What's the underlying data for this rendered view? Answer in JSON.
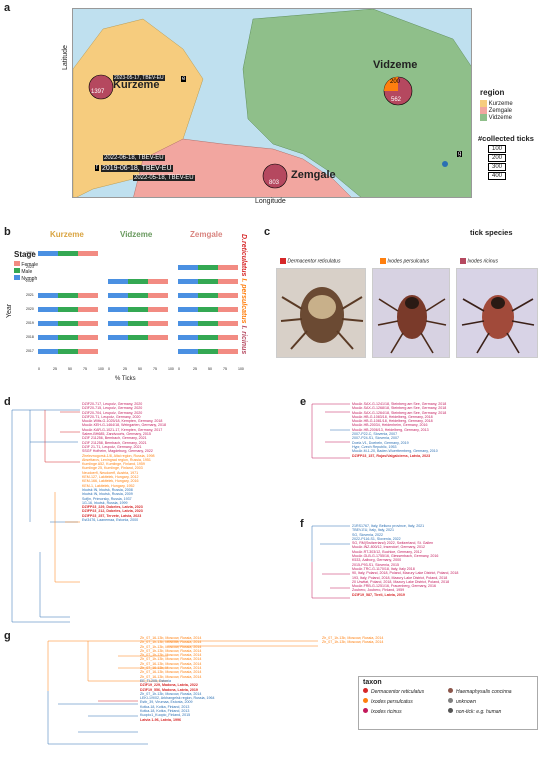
{
  "panels": {
    "a": "a",
    "b": "b",
    "c": "c",
    "d": "d",
    "e": "e",
    "f": "f",
    "g": "g"
  },
  "map": {
    "ylabel": "Latitude",
    "xlabel": "Longitude",
    "regions": {
      "kurzeme": "Kurzeme",
      "zemgale": "Zemgale",
      "vidzeme": "Vidzeme"
    },
    "counts": {
      "kurzeme": "1397",
      "zemgale": "803",
      "vidzeme_top": "200",
      "vidzeme_bottom": "562"
    },
    "legend_title": "region",
    "legend_items": [
      "Kurzeme",
      "Zemgale",
      "Vidzeme"
    ],
    "legend_colors": [
      "#f6cc7e",
      "#f2a6a0",
      "#8fbf8a"
    ],
    "ticks_title": "#collected ticks",
    "ticks_sizes": [
      "100",
      "200",
      "300",
      "400"
    ],
    "tbev_labels": [
      "2023-05-17, TBEV-EU",
      "2022-06-18, TBEV-EU",
      "2019-06-18, TBEV-EU",
      "2022-05-18, TBEV-EU"
    ],
    "letters": [
      "e",
      "f",
      "g"
    ]
  },
  "panel_b": {
    "regions": [
      "Kurzeme",
      "Vidzeme",
      "Zemgale"
    ],
    "stage_title": "Stage",
    "stages": [
      "Female",
      "Male",
      "Nymph"
    ],
    "ylabel": "Year",
    "years": [
      "2024",
      "2023",
      "2022",
      "2021",
      "2020",
      "2019",
      "2018",
      "2017"
    ],
    "xlabel": "% Ticks",
    "xticks": [
      "0",
      "25",
      "50",
      "75",
      "100"
    ],
    "species": [
      "D.reticulatus",
      "I. persulcatus",
      "I. ricinus"
    ]
  },
  "panel_c": {
    "title": "tick species",
    "species": [
      "Dermacentor reticulatus",
      "Ixodes persulcatus",
      "Ixodes ricinus"
    ],
    "colors": [
      "#d62728",
      "#ff7f0e",
      "#b5485f"
    ]
  },
  "tree_d": [
    "DZIF20-717, Leupolz, Germany, 2020",
    "DZIF20-715, Leupolz, Germany, 2020",
    "DZIF20-704, Leupolz, Germany, 2020",
    "DZIF20-T1, Leupolz, Germany, 2020",
    "MucAr-Wilts-G-1025/18, Kempten, Germany, 2018",
    "MucAr-KEH-G-1464/18, Weingarten, Germany, 2018",
    "MucAr-KAR-G-1021-17, Kempten, Germany, 2017",
    "Salem-BH685, Zandvoorts, Germany, 2015",
    "DZIF 211256, Bernbach, Germany, 2021",
    "DZIF 211258, Bernbach, Germany, 2021",
    "DZIF 21-T1, Leupolz, Germany, 2021",
    "SSGF Hofheim, Magdeburg, Germany, 2022",
    "Zheleznogorsk-1/8, Altai region, Russia, 1998",
    "Absettarov, Leningrad region, Russia, 1951",
    "Kumlinge A52, Kumlinge, Finland, 1959",
    "Kumlinge 25, Kumlinge, Finland, 2003",
    "Neudoerfl, Neudoerfl, Austria, 1971",
    "KEM-127, Lakitelek, Hungary, 2012",
    "KEM-166, Lakitelek, Hungary, 2016",
    "KEM-1, Lakitelek, Hungary, 1952",
    "Irkutsk IN, Irkutsk, Russia, 2008",
    "Irkutsk IN, Irkutsk, Russia, 2009",
    "Sofjin, Primorsky, Russia, 1937",
    "1G-16, Irkutsk, Russia, 1999",
    "DZIFP23_229, Dobeles, Latvia, 2023",
    "DZIFP23_212, Dobeles, Latvia, 2023",
    "DZIFP23_257, Tervete, Latvia, 2023",
    "Est3476, Laanemaa, Estonia, 2000"
  ],
  "tree_e": [
    "MucAr-SAX-G-1241/18, Steinberg am See, Germany, 2018",
    "MucAr-SAX-G-1268/18, Steinberg am See, Germany, 2018",
    "MucAr-SAX-G-1264/18, Steinberg am See, Germany, 2018",
    "MucAr-HB-G-1083/18, Heidelberg, Germany, 2018",
    "MucAr-HB-G-1081/18, Heidelberg, Germany, 2018",
    "MucAr-HB-20034, Heidenheim, Germany, 2016",
    "MucAr-HB-2006/13, Heidelberg, Germany, 2013",
    "2007-P22-C, Slovenia, 2007",
    "2007-P24-S1, Slovenia, 2007",
    "Doelz-V1, Doebeln, Germany, 2019",
    "Hypr, Czech Republic, 1953",
    "MucAr-M-1-20, Baden-Wuerttemberg, Germany, 2010",
    "DZIFP23_157, Rojas/Valgalciems, Latvia, 2023"
  ],
  "tree_f": [
    "21RS1767, Italy, Belluno province, Italy, 2021",
    "TBEV-EU, Italy, Italy, 2021",
    "SG, Slovenia, 2022",
    "2022-P116-S1, Slovenia, 2022",
    "SG, RM(Switzerland) 2022, Switzerland, St. Gallen",
    "MucAr-INZ-800/12, Insendorf, Germany, 2012",
    "MucAr-RT-303/12, Buchloe, Germany, 2012",
    "MucAr-GLB-G-1755/16, Giessenbach, Germany, 2016",
    "K533, Aalborg, Germany, 2000",
    "2015-P93-S1, Slovenia, 2015",
    "MucAr-TRC-G-1170/18, Italy, Italy 2018",
    "90, Italy, Poland, 2018, Poland, Mazury Lake District, Poland, 2018",
    "193, Italy, Poland, 2018, Mazury Lake District, Poland, 2018",
    "20 Urwitat, Poland, 2018, Mazury Lake District, Poland, 2018",
    "MucAr-FRB-G-1251/16, Frauenberg, Germany, 2016",
    "Zoubero, Joubero, Finland, 1959",
    "DZIF19_587, Tireli, Latvia, 2019"
  ],
  "tree_g": [
    "Zh_07_16-13b, Moscow, Russia, 2014",
    "Zh_07_1h-13b, Moscow, Russia, 2014",
    "Zh_07_1h-13b, Moscow, Russia, 2014",
    "Zh_07_1h-13b, Moscow, Russia, 2014",
    "Zh_07_1h-13b, Moscow, Russia, 2014",
    "Zh_07_1h-13b, Moscow, Russia, 2014",
    "Zh_07_16-13b, Moscow, Russia, 2014",
    "Zh_07_16-13b, Moscow, Russia, 2014",
    "Zh_07_16-13b, Moscow, Russia, 2014",
    "Zh_07_16-13b, Moscow, Russia, 2014",
    "EE_TL205, Estonia",
    "DZIF19_229, Madona, Latvia, 2022",
    "DZIF19_556, Madona, Latvia, 2019",
    "Zh_07_1h-13b, Moscow, Russia, 2014",
    "LEKI-1/9/02, Arkhangelsk region, Russia, 1964",
    "Estb_39, Virumaa, Estonia, 2009",
    "Kotka-18, Kotka, Finland, 2013",
    "Kotka-18, Kotka, Finland, 2013",
    "Kuopio1_Kuopio_Finland, 2015",
    "Latvia 1-96, Latvia, 1996"
  ],
  "tree_g_right": [
    "Zh_07_1h-13b, Moscow, Russia, 2014",
    "Zh_07_1h-13b, Moscow, Russia, 2014"
  ],
  "taxon": {
    "title": "taxon",
    "items": [
      "Dermacentor reticulatus",
      "Haemaphysalis concinna",
      "Ixodes persulcatus",
      "unknown",
      "Ixodes ricinus",
      "non-tick: e.g. human"
    ],
    "colors": [
      "#d62728",
      "#8c564b",
      "#ff7f0e",
      "#7f7f7f",
      "#c2185b",
      "#555555"
    ]
  }
}
